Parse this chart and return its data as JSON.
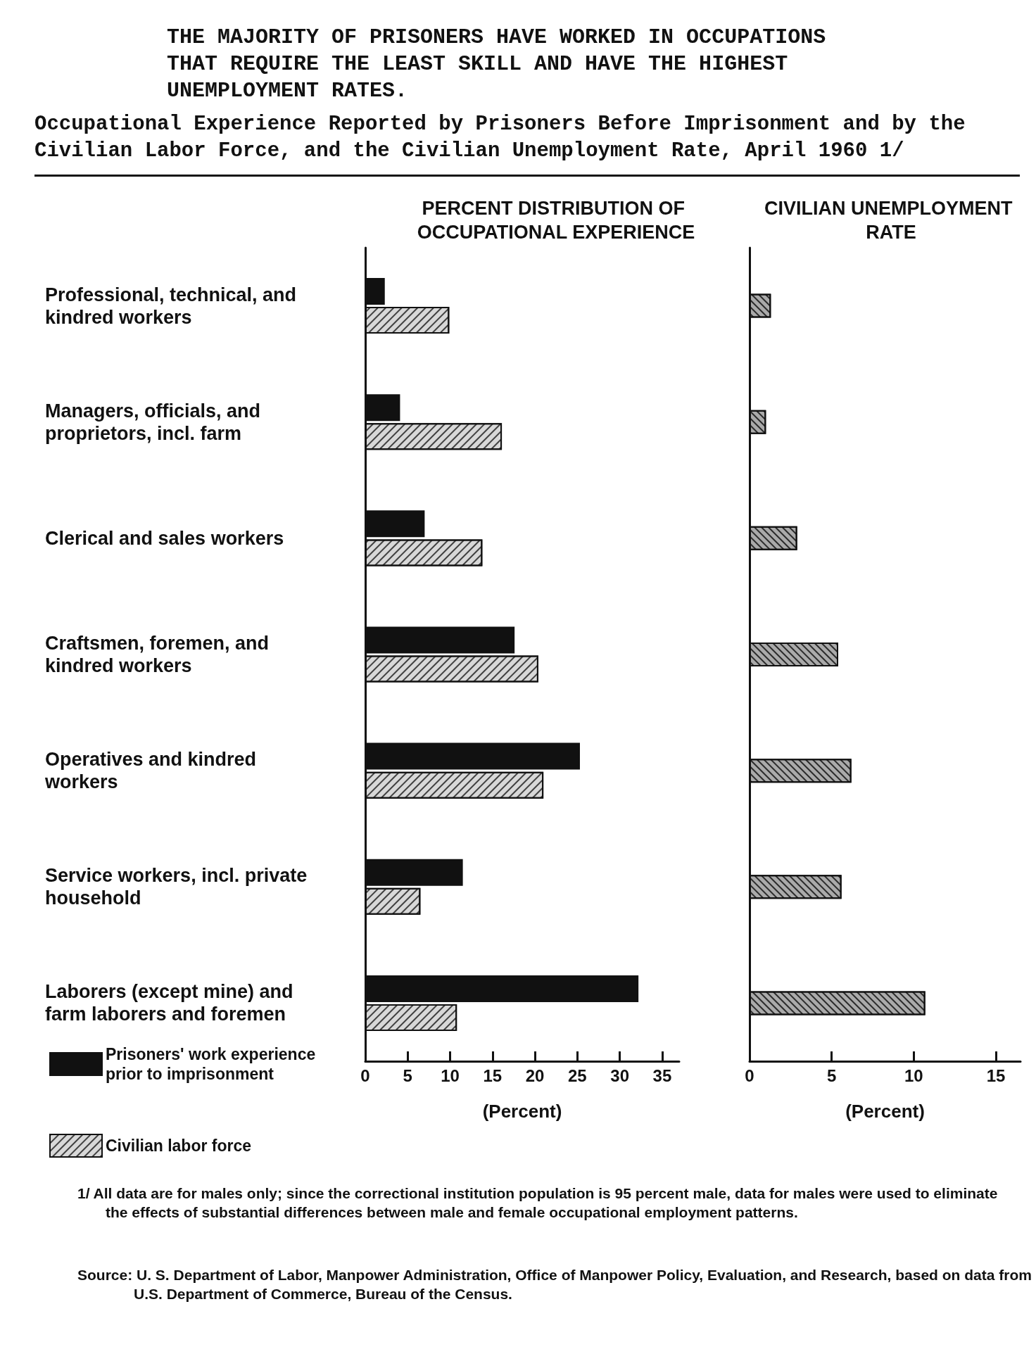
{
  "chart_data": [
    {
      "type": "bar",
      "orientation": "horizontal",
      "title": "PERCENT DISTRIBUTION OF OCCUPATIONAL EXPERIENCE",
      "xlabel": "(Percent)",
      "categories": [
        "Professional, technical, and kindred workers",
        "Managers, officials, and proprietors, incl. farm",
        "Clerical and sales workers",
        "Craftsmen, foremen, and kindred workers",
        "Operatives and kindred workers",
        "Service workers, incl. private household",
        "Laborers (except mine) and farm laborers and foremen"
      ],
      "series": [
        {
          "name": "Prisoners' work experience prior to imprisonment",
          "color": "#111111",
          "values": [
            2.3,
            4.1,
            7.0,
            17.6,
            25.3,
            11.5,
            32.2
          ]
        },
        {
          "name": "Civilian labor force",
          "color": "#d8d8d8",
          "values": [
            9.9,
            16.1,
            13.8,
            20.4,
            21.0,
            6.5,
            10.8
          ]
        }
      ],
      "xlim": [
        0,
        37
      ],
      "xticks": [
        0,
        5,
        10,
        15,
        20,
        25,
        30,
        35
      ],
      "grid": false,
      "legend": "bottom left",
      "annotations": [
        "THE MAJORITY OF PRISONERS HAVE WORKED IN OCCUPATIONS THAT REQUIRE THE LEAST SKILL AND HAVE THE HIGHEST UNEMPLOYMENT RATES.",
        "Occupational Experience Reported by Prisoners Before Imprisonment and by the Civilian Labor Force, and the Civilian Unemployment Rate, April 1960 1/",
        "1/ All data are for males only; since the correctional institution population is 95 percent male, data for males were used to eliminate the effects of substantial differences between male and female occupational employment patterns.",
        "Source: U. S. Department of Labor, Manpower Administration, Office of Manpower Policy, Evaluation, and Research, based on data from U.S. Department of Commerce, Bureau of the Census."
      ]
    },
    {
      "type": "bar",
      "orientation": "horizontal",
      "title": "CIVILIAN UNEMPLOYMENT RATE",
      "xlabel": "(Percent)",
      "categories": [
        null,
        null,
        null,
        null,
        null,
        null,
        null
      ],
      "series": [
        {
          "color": "#aaaaaa",
          "values": [
            1.3,
            1.0,
            2.9,
            5.4,
            6.2,
            5.6,
            10.7
          ]
        }
      ],
      "xlim": [
        0,
        16.5
      ],
      "xticks": [
        0,
        5,
        10,
        15
      ],
      "grid": false,
      "tick_labels": "x"
    }
  ]
}
